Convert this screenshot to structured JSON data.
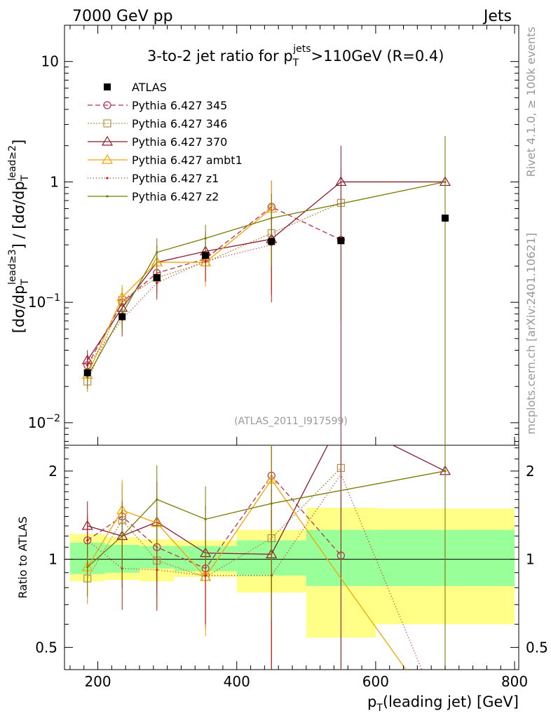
{
  "header": {
    "left": "7000 GeV pp",
    "right": "Jets"
  },
  "side": {
    "rivet": "Rivet 4.1.0, ≥ 100k events",
    "mcplots": "mcplots.cern.ch [arXiv:2401.10621]"
  },
  "chart_data": {
    "type": "line",
    "title": "3-to-2 jet ratio for pT^jets > 110GeV (R=0.4)",
    "title_parts": {
      "pre": "3-to-2 jet ratio for p",
      "sup": "jets",
      "sub": "T",
      "post": ">110GeV (R=0.4)"
    },
    "analysis_id": "(ATLAS_2011_I917599)",
    "xlabel": "pT(leading jet) [GeV]",
    "xlabel_parts": {
      "p": "p",
      "sub": "T",
      "rest": "(leading jet) [GeV]"
    },
    "ylabel": "[dσ/dpT^lead≥3] / [dσ/dpT^lead≥2]",
    "ylabel_parts": {
      "a": "[dσ/dp",
      "b": "] / [dσ/dp",
      "c": "]",
      "sub": "T",
      "sup3": "lead≥3",
      "sup2": "lead≥2"
    },
    "ratio_ylabel": "Ratio to ATLAS",
    "xlim": [
      152,
      806
    ],
    "ylim": [
      0.0065,
      20
    ],
    "yscale": "log",
    "ratio_ylim": [
      0.42,
      2.45
    ],
    "x_ticks": [
      200,
      400,
      600,
      800
    ],
    "y_ticks": [
      {
        "v": 10,
        "base": "10",
        "exp": ""
      },
      {
        "v": 1,
        "base": "1",
        "exp": ""
      },
      {
        "v": 0.1,
        "base": "10",
        "exp": "−1"
      },
      {
        "v": 0.01,
        "base": "10",
        "exp": "−2"
      }
    ],
    "ratio_ticks": [
      {
        "v": 0.5,
        "label": "0.5"
      },
      {
        "v": 1,
        "label": "1"
      },
      {
        "v": 2,
        "label": "2"
      }
    ],
    "bin_edges": [
      160,
      210,
      260,
      310,
      400,
      500,
      600,
      800
    ],
    "data": {
      "name": "ATLAS",
      "x": [
        185,
        235,
        285,
        355,
        450,
        550,
        700
      ],
      "y": [
        0.026,
        0.076,
        0.16,
        0.245,
        0.32,
        0.325,
        0.5
      ],
      "band_inner": [
        [
          0.89,
          1.14
        ],
        [
          0.9,
          1.12
        ],
        [
          0.93,
          1.11
        ],
        [
          0.91,
          1.11
        ],
        [
          0.88,
          1.16
        ],
        [
          0.81,
          1.26
        ],
        [
          0.81,
          1.26
        ]
      ],
      "band_outer": [
        [
          0.84,
          1.22
        ],
        [
          0.85,
          1.19
        ],
        [
          0.84,
          1.17
        ],
        [
          0.87,
          1.16
        ],
        [
          0.77,
          1.26
        ],
        [
          0.54,
          1.5
        ],
        [
          0.6,
          1.49
        ]
      ]
    },
    "series": [
      {
        "name": "Pythia 6.427 345",
        "color": "#b2334a",
        "dash": "7,4",
        "marker": "circle",
        "x": [
          185,
          235,
          285,
          355,
          450,
          550
        ],
        "y": [
          0.03,
          0.1,
          0.175,
          0.23,
          0.62,
          0.33
        ],
        "err": [
          0.006,
          0.03,
          0.055,
          0.08,
          0.4,
          0.0
        ],
        "ratio": [
          1.16,
          1.4,
          1.1,
          0.93,
          1.93,
          1.03
        ]
      },
      {
        "name": "Pythia 6.427 346",
        "color": "#b58f4b",
        "dash": "2,2",
        "marker": "square",
        "x": [
          185,
          235,
          285,
          355,
          450,
          550
        ],
        "y": [
          0.022,
          0.104,
          0.16,
          0.215,
          0.375,
          0.67
        ],
        "err": [
          0.004,
          0.03,
          0.05,
          0.07,
          0.25,
          0.6
        ],
        "ratio": [
          0.86,
          1.36,
          0.99,
          0.87,
          1.18,
          2.05
        ]
      },
      {
        "name": "Pythia 6.427 370",
        "color": "#8b1a2e",
        "dash": "",
        "marker": "triangle",
        "x": [
          185,
          235,
          285,
          355,
          450,
          550,
          700
        ],
        "y": [
          0.033,
          0.09,
          0.215,
          0.265,
          0.335,
          1.0,
          1.0
        ],
        "err": [
          0.007,
          0.03,
          0.08,
          0.12,
          0.22,
          1.0,
          1.4
        ],
        "ratio": [
          1.3,
          1.2,
          1.34,
          1.05,
          1.04,
          3.0,
          2.0
        ]
      },
      {
        "name": "Pythia 6.427 ambt1",
        "color": "#f5a300",
        "dash": "",
        "marker": "triangle",
        "x": [
          185,
          235,
          285,
          355,
          450
        ],
        "y": [
          0.025,
          0.11,
          0.215,
          0.215,
          0.6
        ],
        "err": [
          0.005,
          0.03,
          0.07,
          0.08,
          0.4
        ],
        "ratio": [
          0.94,
          1.47,
          1.33,
          0.87,
          1.87
        ],
        "ratio_x": [
          185,
          235,
          285,
          355,
          450,
          550,
          650
        ],
        "ratio_y": [
          0.94,
          1.47,
          1.33,
          0.87,
          1.87,
          0.86,
          0.4
        ]
      },
      {
        "name": "Pythia 6.427 z1",
        "color": "#c81c0c",
        "dash": "1,3",
        "marker": "dot",
        "x": [
          185,
          235,
          285,
          355,
          450
        ],
        "y": [
          0.03,
          0.072,
          0.145,
          0.22,
          0.3
        ],
        "err": [
          0.007,
          0.02,
          0.04,
          0.07,
          0.2
        ],
        "ratio_x": [
          185,
          235,
          285,
          355,
          450,
          550,
          670
        ],
        "ratio_y": [
          1.16,
          0.93,
          0.92,
          0.88,
          0.88,
          1.95,
          0.4
        ]
      },
      {
        "name": "Pythia 6.427 z2",
        "color": "#7a7a00",
        "dash": "",
        "marker": "dot",
        "x": [
          185,
          235,
          285,
          355,
          450,
          700
        ],
        "y": [
          0.024,
          0.08,
          0.26,
          0.34,
          0.5,
          1.0
        ],
        "err": [
          0.005,
          0.025,
          0.08,
          0.1,
          0.3,
          1.4
        ],
        "ratio": [
          0.94,
          1.2,
          1.6,
          1.37,
          1.55,
          2.0
        ]
      }
    ]
  }
}
